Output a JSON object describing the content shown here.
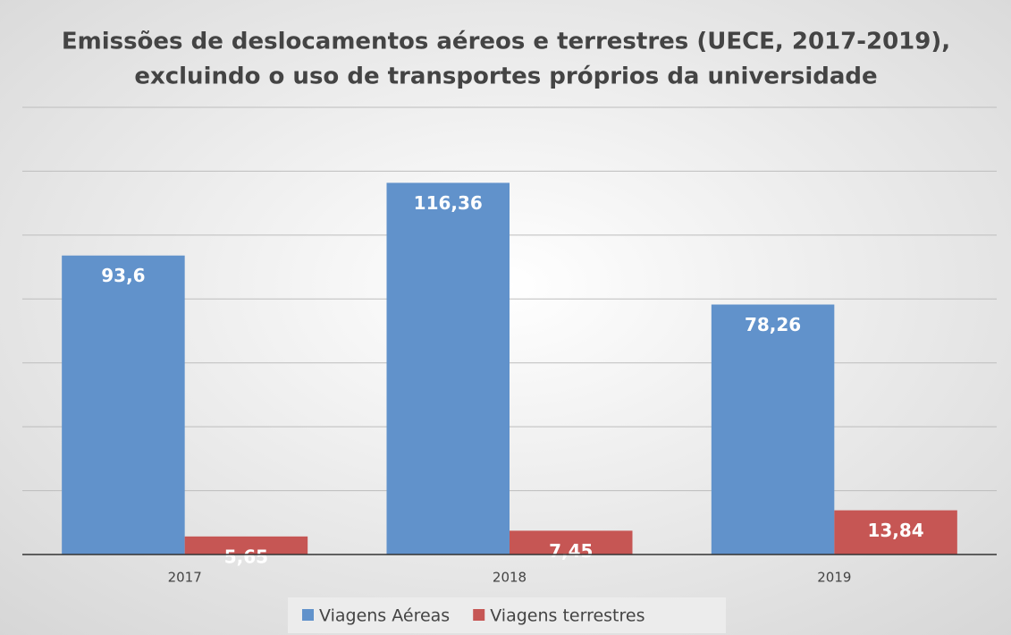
{
  "chart_data": {
    "type": "bar",
    "title": [
      "Emissões de deslocamentos aéreos e terrestres (UECE, 2017-2019),",
      "excluindo o uso de transportes próprios da universidade"
    ],
    "categories": [
      "2017",
      "2018",
      "2019"
    ],
    "series": [
      {
        "name": "Viagens Aéreas",
        "color": "#6192cb",
        "values": [
          93.6,
          116.36,
          78.26
        ],
        "value_labels": [
          "93,6",
          "116,36",
          "78,26"
        ]
      },
      {
        "name": "Viagens terrestres",
        "color": "#c65654",
        "values": [
          5.65,
          7.45,
          13.84
        ],
        "value_labels": [
          "5,65",
          "7,45",
          "13,84"
        ]
      }
    ],
    "ylim": [
      0,
      140
    ],
    "yticks": [
      0,
      20,
      40,
      60,
      80,
      100,
      120,
      140
    ],
    "grid": true,
    "legend": "bottom"
  }
}
